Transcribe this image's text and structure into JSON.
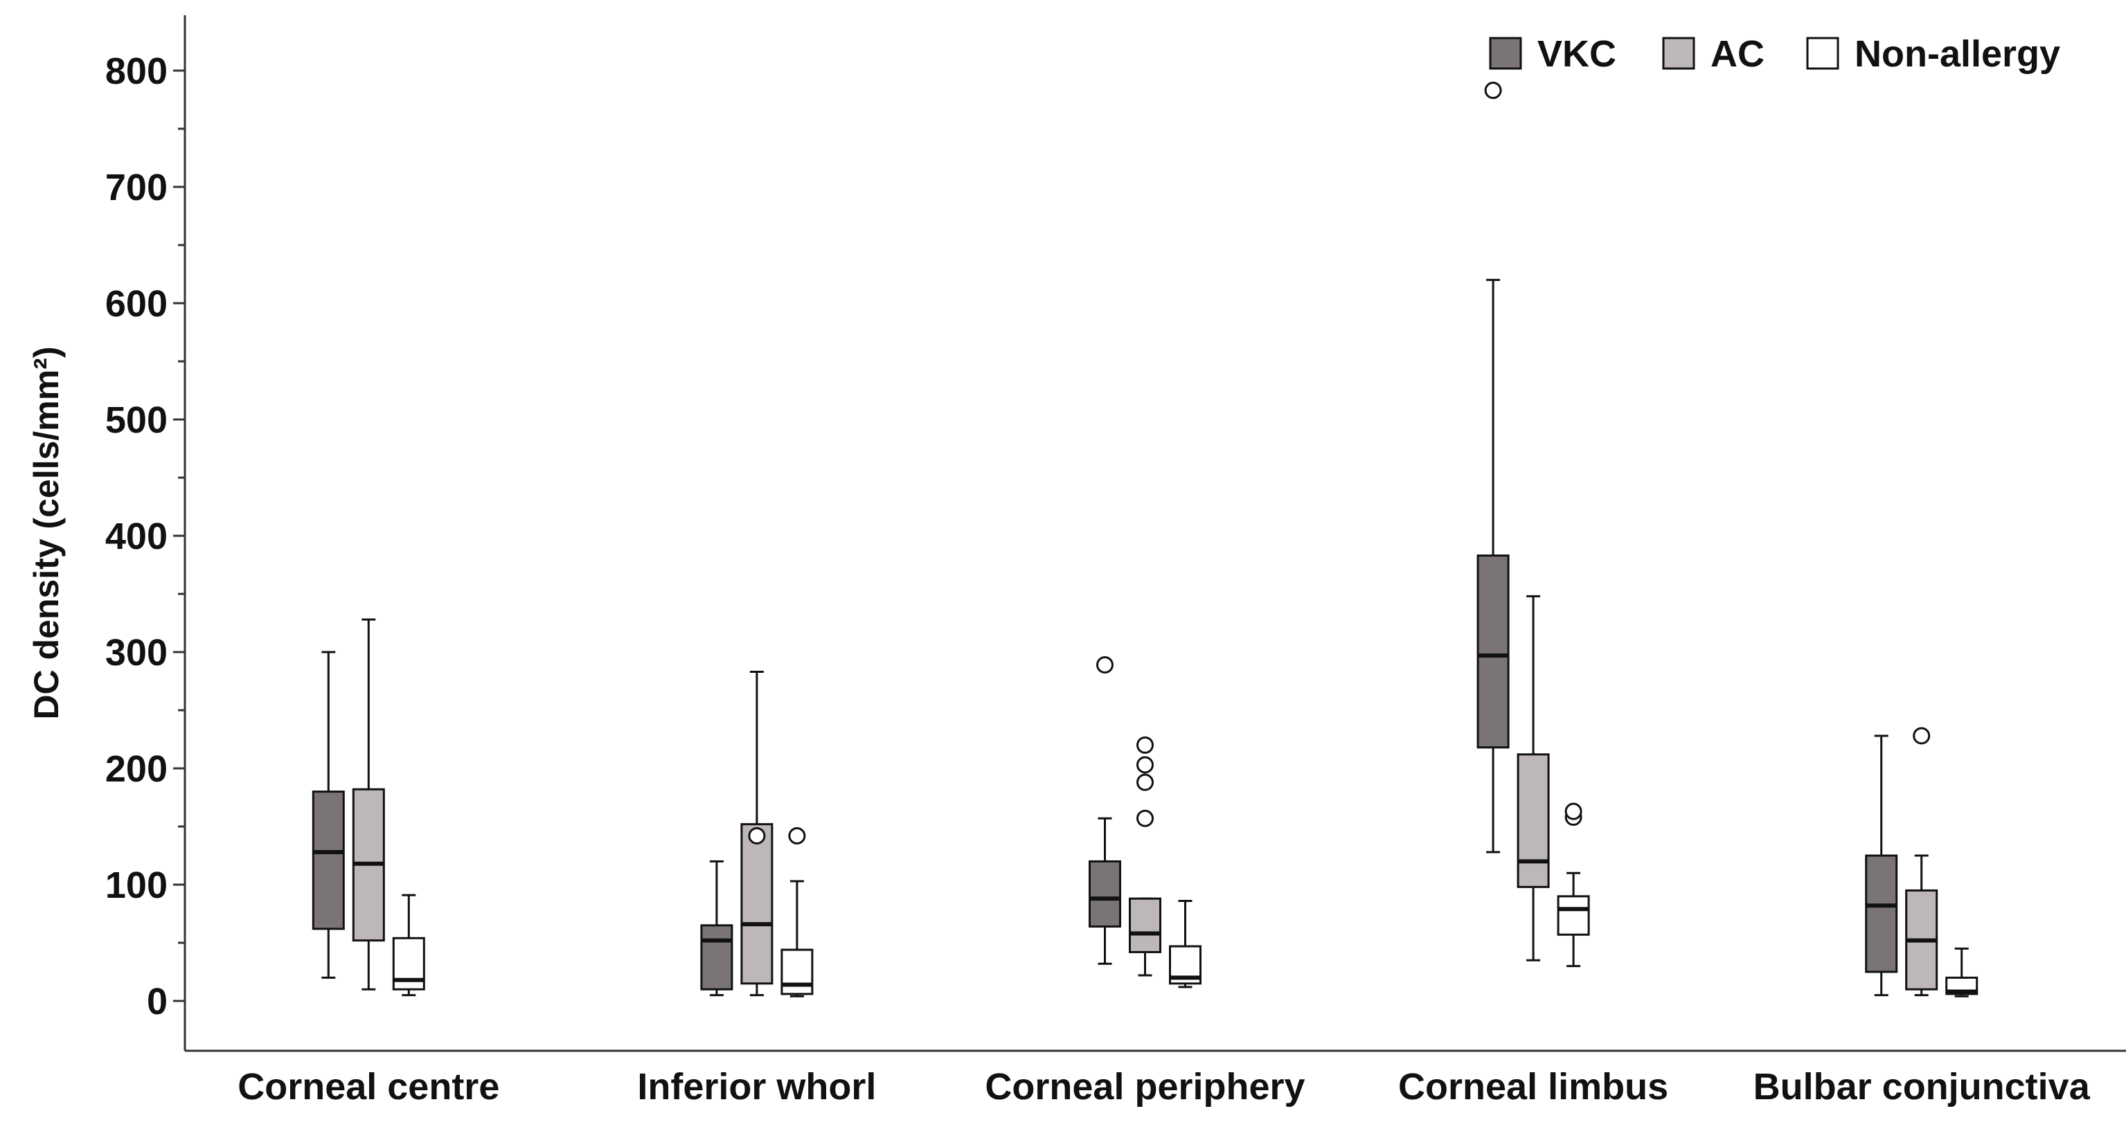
{
  "chart_data": {
    "type": "boxplot",
    "title": "",
    "xlabel": "",
    "ylabel": "DC density (cells/mm²)",
    "ylim": [
      -40,
      845
    ],
    "yticks": [
      0,
      100,
      200,
      300,
      400,
      500,
      600,
      700,
      800
    ],
    "ytick_labels": [
      "0",
      "100",
      "200",
      "300",
      "400",
      "500",
      "600",
      "700",
      "800"
    ],
    "legend_position": "top-right",
    "categories": [
      "Corneal centre",
      "Inferior whorl",
      "Corneal periphery",
      "Corneal limbus",
      "Bulbar conjunctiva"
    ],
    "series": [
      {
        "name": "VKC",
        "color": "#7a7474",
        "boxes": [
          {
            "min": 20,
            "q1": 62,
            "median": 128,
            "q3": 180,
            "max": 300,
            "outliers": []
          },
          {
            "min": 5,
            "q1": 10,
            "median": 52,
            "q3": 65,
            "max": 120,
            "outliers": []
          },
          {
            "min": 32,
            "q1": 64,
            "median": 88,
            "q3": 120,
            "max": 157,
            "outliers": [
              289
            ]
          },
          {
            "min": 128,
            "q1": 218,
            "median": 297,
            "q3": 383,
            "max": 620,
            "outliers": [
              783
            ]
          },
          {
            "min": 5,
            "q1": 25,
            "median": 82,
            "q3": 125,
            "max": 228,
            "outliers": []
          }
        ]
      },
      {
        "name": "AC",
        "color": "#bdb7b7",
        "boxes": [
          {
            "min": 10,
            "q1": 52,
            "median": 118,
            "q3": 182,
            "max": 328,
            "outliers": []
          },
          {
            "min": 5,
            "q1": 15,
            "median": 66,
            "q3": 152,
            "max": 283,
            "outliers": [
              142
            ]
          },
          {
            "min": 22,
            "q1": 42,
            "median": 58,
            "q3": 88,
            "max": 88,
            "outliers": [
              157,
              188,
              203,
              220
            ]
          },
          {
            "min": 35,
            "q1": 98,
            "median": 120,
            "q3": 212,
            "max": 348,
            "outliers": []
          },
          {
            "min": 5,
            "q1": 10,
            "median": 52,
            "q3": 95,
            "max": 125,
            "outliers": [
              228
            ]
          }
        ]
      },
      {
        "name": "Non-allergy",
        "color": "#ffffff",
        "boxes": [
          {
            "min": 5,
            "q1": 10,
            "median": 18,
            "q3": 54,
            "max": 91,
            "outliers": []
          },
          {
            "min": 4,
            "q1": 6,
            "median": 14,
            "q3": 44,
            "max": 103,
            "outliers": [
              142
            ]
          },
          {
            "min": 12,
            "q1": 15,
            "median": 20,
            "q3": 47,
            "max": 86,
            "outliers": []
          },
          {
            "min": 30,
            "q1": 57,
            "median": 79,
            "q3": 90,
            "max": 110,
            "outliers": [
              158,
              163
            ]
          },
          {
            "min": 4,
            "q1": 6,
            "median": 8,
            "q3": 20,
            "max": 45,
            "outliers": []
          }
        ]
      }
    ]
  }
}
